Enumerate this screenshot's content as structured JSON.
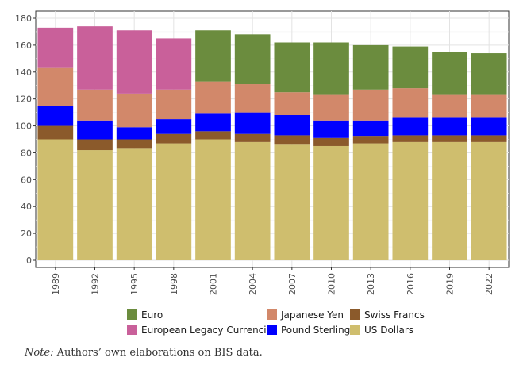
{
  "chart_data": {
    "type": "bar",
    "stacked": true,
    "categories": [
      "1989",
      "1992",
      "1995",
      "1998",
      "2001",
      "2004",
      "2007",
      "2010",
      "2013",
      "2016",
      "2019",
      "2022"
    ],
    "series": [
      {
        "name": "US Dollars",
        "color": "#cfbe6e",
        "values": [
          90,
          82,
          83,
          87,
          90,
          88,
          86,
          85,
          87,
          88,
          88,
          88
        ]
      },
      {
        "name": "Swiss Francs",
        "color": "#8b5a2b",
        "values": [
          10,
          8,
          7,
          7,
          6,
          6,
          7,
          6,
          5,
          5,
          5,
          5
        ]
      },
      {
        "name": "Pound Sterling",
        "color": "#0000ff",
        "values": [
          15,
          14,
          9,
          11,
          13,
          16,
          15,
          13,
          12,
          13,
          13,
          13
        ]
      },
      {
        "name": "Japanese Yen",
        "color": "#d2886a",
        "values": [
          28,
          23,
          25,
          22,
          24,
          21,
          17,
          19,
          23,
          22,
          17,
          17
        ]
      },
      {
        "name": "European Legacy Currencies",
        "color": "#c9609a",
        "values": [
          30,
          47,
          47,
          38,
          0,
          0,
          0,
          0,
          0,
          0,
          0,
          0
        ]
      },
      {
        "name": "Euro",
        "color": "#6b8c3e",
        "values": [
          0,
          0,
          0,
          0,
          38,
          37,
          37,
          39,
          33,
          31,
          32,
          31
        ]
      }
    ],
    "ylim": [
      0,
      180
    ],
    "yticks": [
      0,
      20,
      40,
      60,
      80,
      100,
      120,
      140,
      160,
      180
    ],
    "grid": true,
    "legend_position": "bottom",
    "legend_order": [
      "Euro",
      "European Legacy Currencies",
      "Japanese Yen",
      "Pound Sterling",
      "Swiss Francs",
      "US Dollars"
    ]
  },
  "note": {
    "label": "Note:",
    "text": " Authors’ own elaborations on BIS data."
  }
}
